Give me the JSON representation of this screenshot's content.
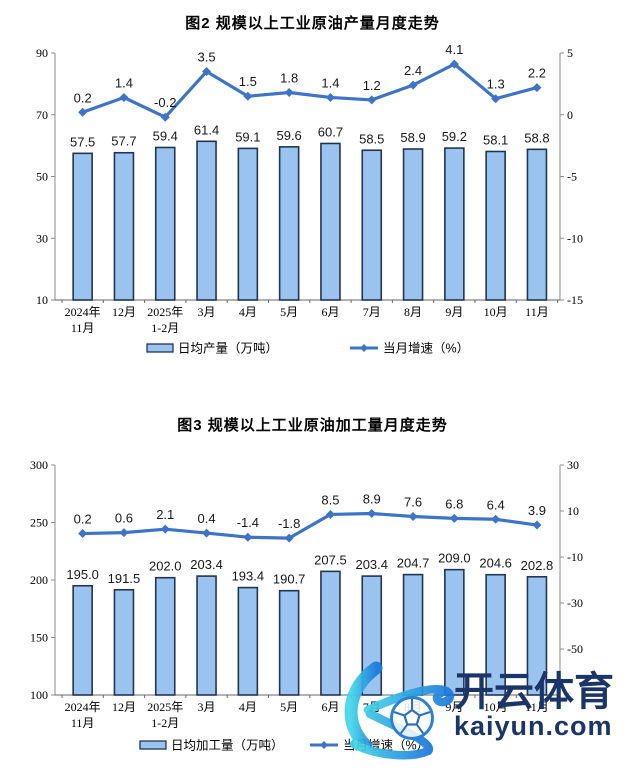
{
  "page": {
    "background": "#ffffff"
  },
  "colors": {
    "bar_fill": "#9AC4EF",
    "bar_border": "#223550",
    "line": "#3E74C7",
    "axis": "#8C8C8C",
    "text": "#181818"
  },
  "watermark": {
    "logo_letter": "K",
    "brand": "开云体育",
    "domain": "kaiyun.com",
    "colors": {
      "navy": "#1C3568",
      "grad_start": "#41D6E8",
      "grad_end": "#1C78DC",
      "ball_line": "#2B6FC4"
    }
  },
  "chart_data": [
    {
      "type": "bar+line",
      "title": "图2  规模以上工业原油产量月度走势",
      "categories": [
        "2024年\n11月",
        "12月",
        "2025年\n1-2月",
        "3月",
        "4月",
        "5月",
        "6月",
        "7月",
        "8月",
        "9月",
        "10月",
        "11月"
      ],
      "series": [
        {
          "name": "日均产量（万吨）",
          "type": "bar",
          "axis": "left",
          "values": [
            57.5,
            57.7,
            59.4,
            61.4,
            59.1,
            59.6,
            60.7,
            58.5,
            58.9,
            59.2,
            58.1,
            58.8
          ]
        },
        {
          "name": "当月增速（%）",
          "type": "line",
          "axis": "right",
          "values": [
            0.2,
            1.4,
            -0.2,
            3.5,
            1.5,
            1.8,
            1.4,
            1.2,
            2.4,
            4.1,
            1.3,
            2.2
          ]
        }
      ],
      "left_axis": {
        "min": 10,
        "max": 90,
        "ticks": [
          90,
          70,
          50,
          30,
          10
        ]
      },
      "right_axis": {
        "min": -15,
        "max": 5,
        "ticks": [
          5,
          0,
          -5,
          -10,
          -15
        ]
      },
      "legend": [
        "日均产量（万吨）",
        "当月增速（%）"
      ],
      "grid": false,
      "legend_position": "bottom"
    },
    {
      "type": "bar+line",
      "title": "图3  规模以上工业原油加工量月度走势",
      "categories": [
        "2024年\n11月",
        "12月",
        "2025年\n1-2月",
        "3月",
        "4月",
        "5月",
        "6月",
        "7月",
        "8月",
        "9月",
        "10月",
        "11月"
      ],
      "series": [
        {
          "name": "日均加工量（万吨）",
          "type": "bar",
          "axis": "left",
          "values": [
            195.0,
            191.5,
            202.0,
            203.4,
            193.4,
            190.7,
            207.5,
            203.4,
            204.7,
            209.0,
            204.6,
            202.8
          ]
        },
        {
          "name": "当月增速（%）",
          "type": "line",
          "axis": "right",
          "values": [
            0.2,
            0.6,
            2.1,
            0.4,
            -1.4,
            -1.8,
            8.5,
            8.9,
            7.6,
            6.8,
            6.4,
            3.9
          ]
        }
      ],
      "left_axis": {
        "min": 100,
        "max": 300,
        "ticks": [
          300,
          250,
          200,
          150,
          100
        ]
      },
      "right_axis": {
        "min": -70,
        "max": 30,
        "ticks": [
          30,
          10,
          -10,
          -30,
          -50
        ]
      },
      "legend": [
        "日均加工量（万吨）",
        "当月增速（%）"
      ],
      "grid": false,
      "legend_position": "bottom"
    }
  ]
}
